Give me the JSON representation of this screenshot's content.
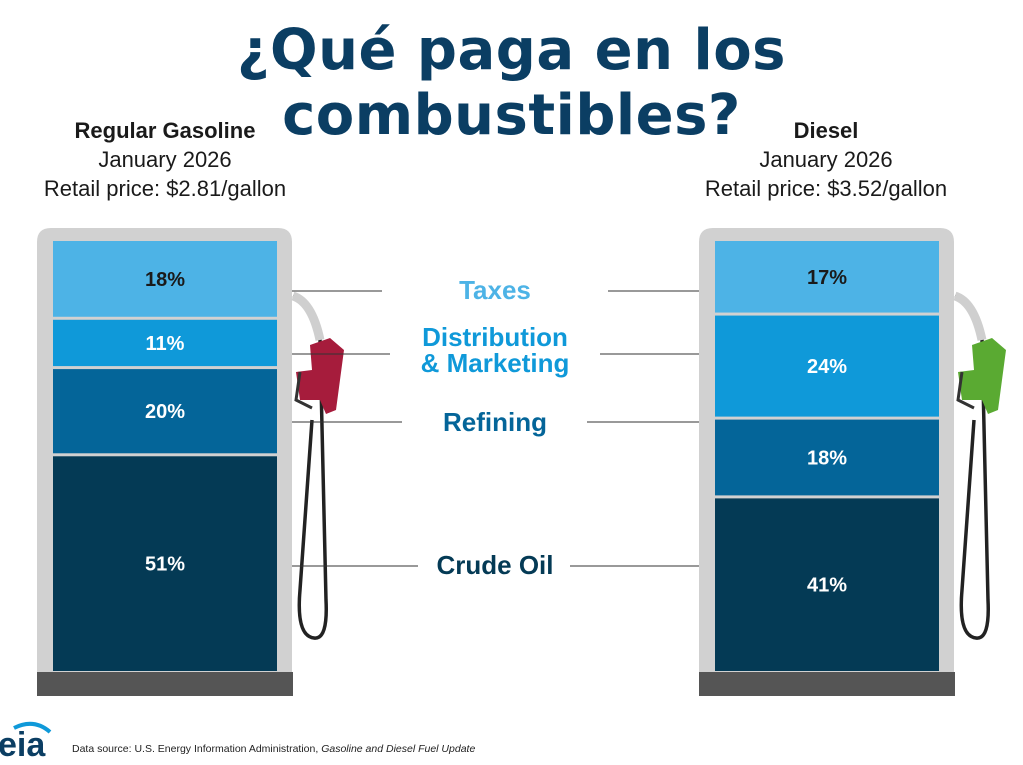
{
  "title": "¿Qué paga en los combustibles?",
  "colors": {
    "taxes": "#4db3e6",
    "distribution": "#0f99d9",
    "refining": "#046599",
    "crude": "#043a55",
    "pump_body": "#d1d1d1",
    "pump_base": "#555555",
    "nozzle_gasoline": "#a61c3c",
    "nozzle_diesel": "#5aaa32",
    "title": "#0b3e63"
  },
  "left_pump": {
    "name": "Regular Gasoline",
    "date": "January 2026",
    "price": "Retail price: $2.81/gallon"
  },
  "right_pump": {
    "name": "Diesel",
    "date": "January 2026",
    "price": "Retail price: $3.52/gallon"
  },
  "footer": {
    "source_prefix": "Data source: U.S. Energy Information Administration, ",
    "source_title": "Gasoline and Diesel Fuel Update"
  },
  "logo_text": "eia",
  "chart_data": {
    "type": "bar",
    "stacked": true,
    "unit": "%",
    "categories": [
      "Regular Gasoline",
      "Diesel"
    ],
    "series": [
      {
        "name": "Taxes",
        "values": [
          18,
          17
        ],
        "labels": [
          "18%",
          "17%"
        ]
      },
      {
        "name": "Distribution & Marketing",
        "values": [
          11,
          24
        ],
        "labels": [
          "11%",
          "24%"
        ]
      },
      {
        "name": "Refining",
        "values": [
          20,
          18
        ],
        "labels": [
          "20%",
          "18%"
        ]
      },
      {
        "name": "Crude Oil",
        "values": [
          51,
          41
        ],
        "labels": [
          "51%",
          "41%"
        ]
      }
    ],
    "series_display": {
      "taxes_label": "Taxes",
      "distribution_line1": "Distribution",
      "distribution_line2": "& Marketing",
      "refining_label": "Refining",
      "crude_label": "Crude Oil"
    }
  }
}
